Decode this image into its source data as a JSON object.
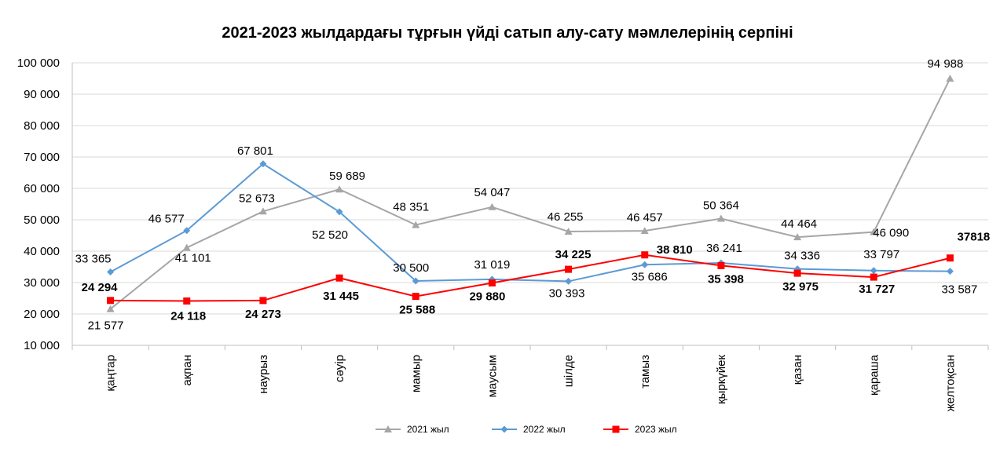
{
  "chart_data": {
    "type": "line",
    "title": "2021-2023 жылдардағы тұрғын үйді сатып алу-сату мәмлелерінің серпіні",
    "xlabel": "",
    "ylabel": "",
    "ylim": [
      10000,
      100000
    ],
    "ytick_values": [
      10000,
      20000,
      30000,
      40000,
      50000,
      60000,
      70000,
      80000,
      90000,
      100000
    ],
    "ytick_labels": [
      "10 000",
      "20 000",
      "30 000",
      "40 000",
      "50 000",
      "60 000",
      "70 000",
      "80 000",
      "90 000",
      "100 000"
    ],
    "grid": true,
    "legend_position": "bottom",
    "categories": [
      "қаңтар",
      "ақпан",
      "наурыз",
      "сәуір",
      "мамыр",
      "маусым",
      "шілде",
      "тамыз",
      "қыркүйек",
      "қазан",
      "қараша",
      "желтоқсан"
    ],
    "series": [
      {
        "name": "2021  жыл",
        "color": "#A6A6A6",
        "marker": "triangle",
        "values": [
          21577,
          41101,
          52673,
          59689,
          48351,
          54047,
          46255,
          46457,
          50364,
          44464,
          46090,
          94988
        ],
        "labels": [
          "21 577",
          "41 101",
          "52 673",
          "59 689",
          "48 351",
          "54 047",
          "46 255",
          "46 457",
          "50 364",
          "44 464",
          "46 090",
          "94 988"
        ]
      },
      {
        "name": "2022  жыл",
        "color": "#5B9BD5",
        "marker": "diamond",
        "values": [
          33365,
          46577,
          67801,
          52520,
          30500,
          31019,
          30393,
          35686,
          36241,
          34336,
          33797,
          33587
        ],
        "labels": [
          "33 365",
          "46 577",
          "67 801",
          "52 520",
          "30 500",
          "31 019",
          "30 393",
          "35 686",
          "36 241",
          "34 336",
          "33 797",
          "33 587"
        ]
      },
      {
        "name": "2023  жыл",
        "color": "#FF0000",
        "marker": "square",
        "values": [
          24294,
          24118,
          24273,
          31445,
          25588,
          29880,
          34225,
          38810,
          35398,
          32975,
          31727,
          37818
        ],
        "labels": [
          "24 294",
          "24 118",
          "24 273",
          "31 445",
          "25 588",
          "29 880",
          "34 225",
          "38 810",
          "35 398",
          "32 975",
          "31 727",
          "37818"
        ]
      }
    ]
  }
}
